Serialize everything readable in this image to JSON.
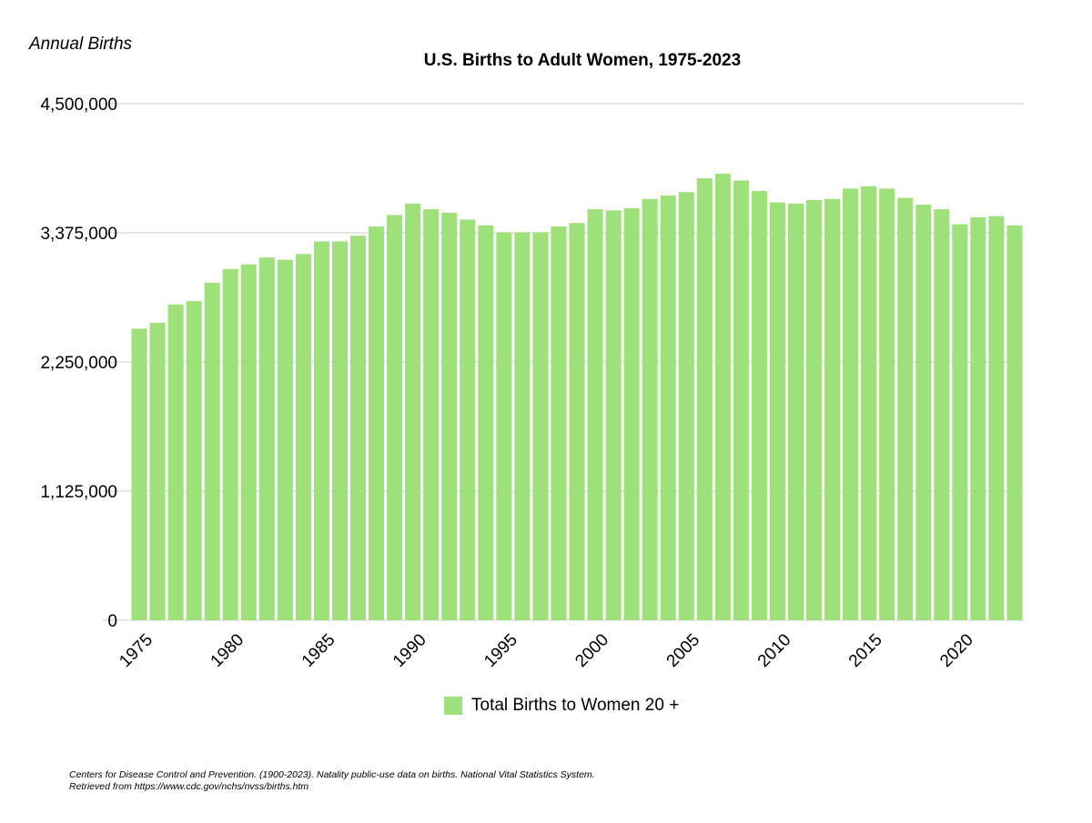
{
  "chart_data": {
    "type": "bar",
    "title": "U.S. Births to Adult Women, 1975-2023",
    "ylabel": "Annual Births",
    "xlabel": "",
    "ylim": [
      0,
      4500000
    ],
    "yticks": [
      0,
      1125000,
      2250000,
      3375000,
      4500000
    ],
    "ytick_labels": [
      "0",
      "1,125,000",
      "2,250,000",
      "3,375,000",
      "4,500,000"
    ],
    "xtick_labels": [
      "1975",
      "1980",
      "1985",
      "1990",
      "1995",
      "2000",
      "2005",
      "2010",
      "2015",
      "2020"
    ],
    "grid": true,
    "legend_position": "bottom-center",
    "color": "#9ee07a",
    "categories": [
      "1975",
      "1976",
      "1977",
      "1978",
      "1979",
      "1980",
      "1981",
      "1982",
      "1983",
      "1984",
      "1985",
      "1986",
      "1987",
      "1988",
      "1989",
      "1990",
      "1991",
      "1992",
      "1993",
      "1994",
      "1995",
      "1996",
      "1997",
      "1998",
      "1999",
      "2000",
      "2001",
      "2002",
      "2003",
      "2004",
      "2005",
      "2006",
      "2007",
      "2008",
      "2009",
      "2010",
      "2011",
      "2012",
      "2013",
      "2014",
      "2015",
      "2016",
      "2017",
      "2018",
      "2019",
      "2020",
      "2021",
      "2022",
      "2023"
    ],
    "series": [
      {
        "name": "Total Births to Women 20 +",
        "values": [
          2540000,
          2590000,
          2750000,
          2780000,
          2940000,
          3060000,
          3100000,
          3160000,
          3140000,
          3190000,
          3300000,
          3300000,
          3350000,
          3430000,
          3530000,
          3630000,
          3580000,
          3550000,
          3490000,
          3440000,
          3380000,
          3380000,
          3380000,
          3430000,
          3460000,
          3580000,
          3570000,
          3590000,
          3670000,
          3700000,
          3730000,
          3850000,
          3890000,
          3830000,
          3740000,
          3640000,
          3630000,
          3660000,
          3670000,
          3760000,
          3780000,
          3760000,
          3680000,
          3620000,
          3580000,
          3450000,
          3510000,
          3520000,
          3440000
        ]
      }
    ]
  },
  "source": {
    "line1": "Centers for Disease Control and Prevention. (1900-2023). Natality public-use data on births. National Vital Statistics System.",
    "line2": "Retrieved from https://www.cdc.gov/nchs/nvss/births.htm"
  }
}
